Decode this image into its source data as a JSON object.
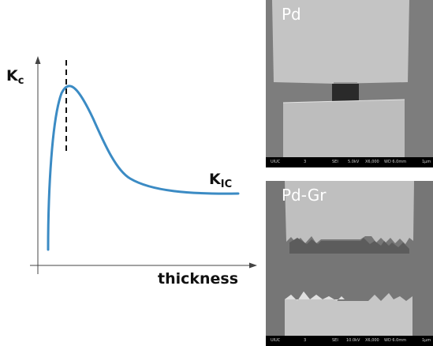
{
  "plot": {
    "y_label": "K",
    "y_label_sub": "c",
    "x_label": "thickness",
    "curve_label": "K",
    "curve_label_sub": "IC",
    "curve_color": "#3b8bc4"
  },
  "sem_images": [
    {
      "label": "Pd",
      "databar": {
        "org": "UIUC",
        "num": "3",
        "mode": "SEI",
        "kv": "5.0kV",
        "mag": "X6,000",
        "wd": "WD 6.0mm",
        "scale": "1μm"
      }
    },
    {
      "label": "Pd-Gr",
      "databar": {
        "org": "UIUC",
        "num": "3",
        "mode": "SEI",
        "kv": "10.0kV",
        "mag": "X6,000",
        "wd": "WD 6.0mm",
        "scale": "1μm"
      }
    }
  ]
}
